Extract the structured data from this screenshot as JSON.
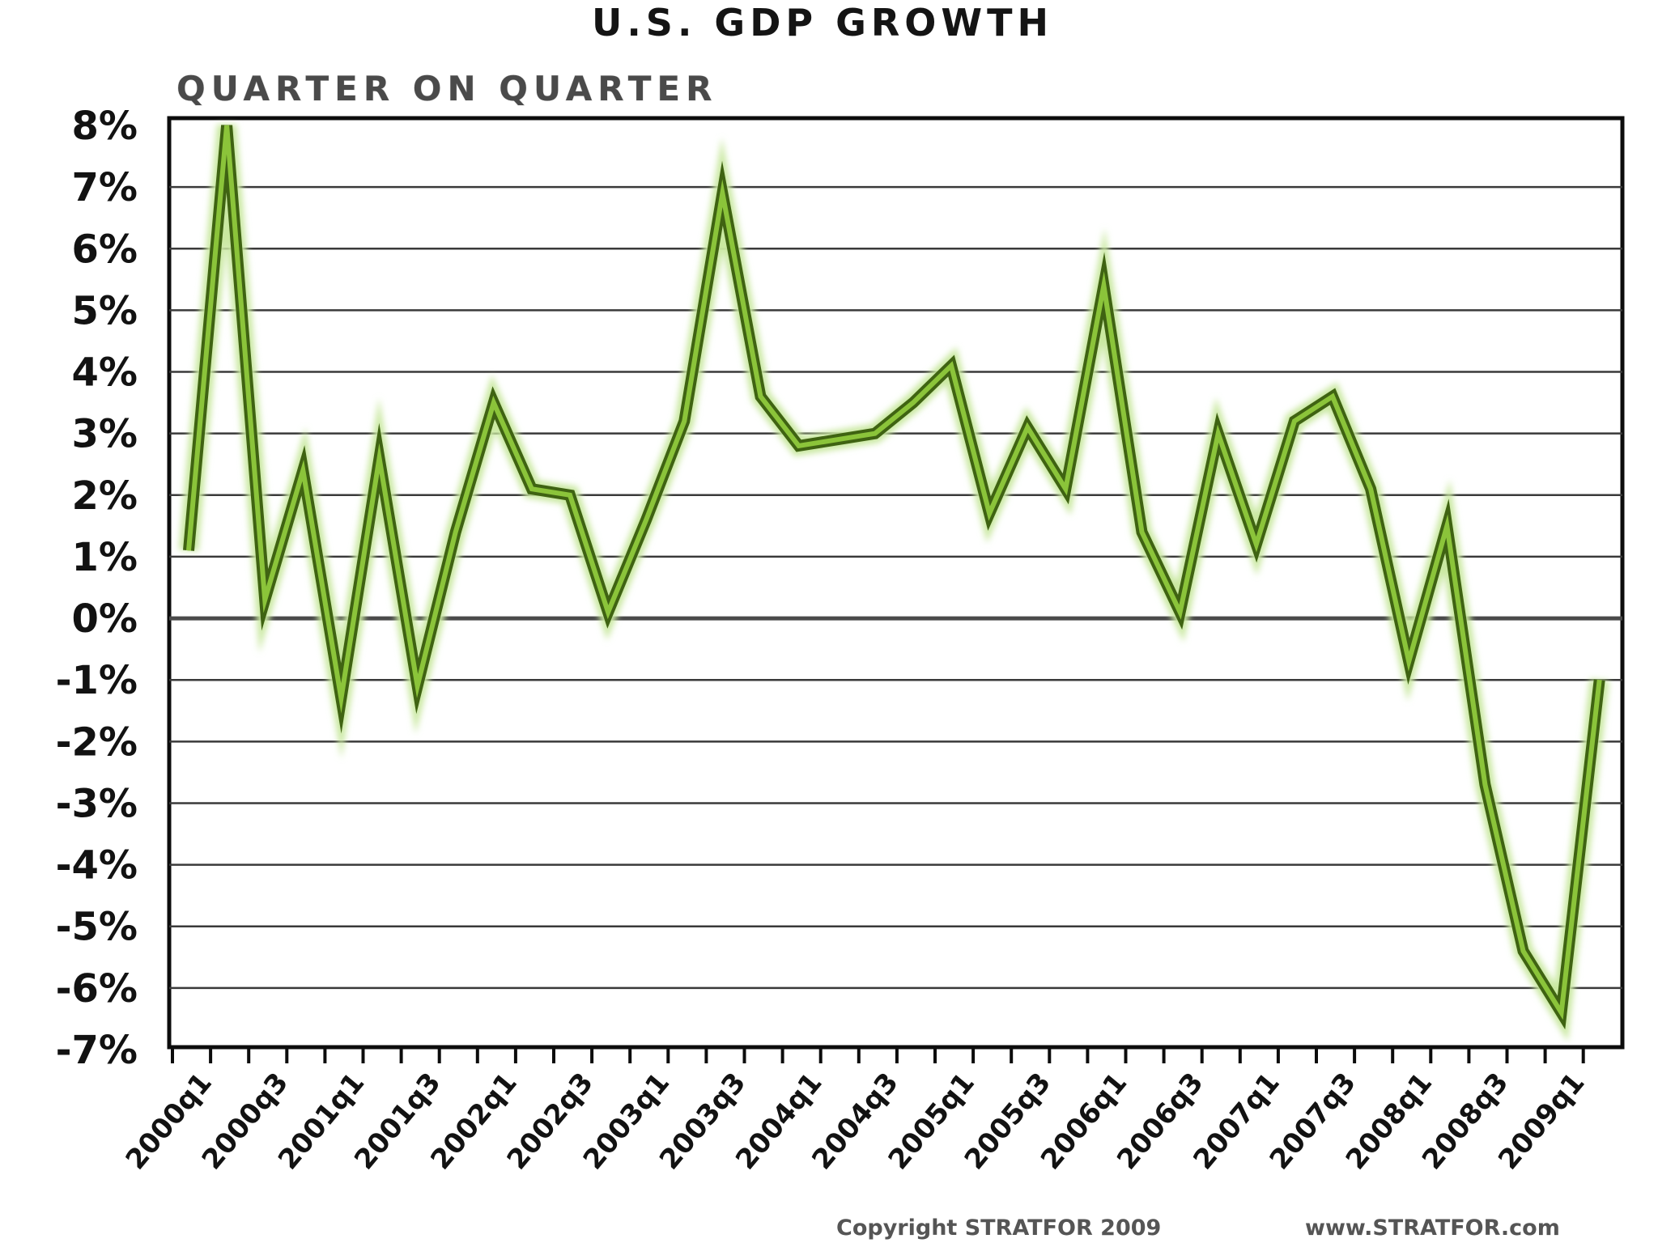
{
  "colors": {
    "series_line": "#8bc43a",
    "series_outline": "#3f6312",
    "series_glow": "#c9e8a0",
    "grid": "#3a3a3a",
    "frame": "#0c0c0c",
    "background": "#ffffff"
  },
  "chart_data": {
    "type": "line",
    "title": "U.S. GDP GROWTH",
    "subtitle": "QUARTER ON QUARTER",
    "xlabel": "",
    "ylabel": "",
    "copyright": "Copyright STRATFOR 2009",
    "website": "www.STRATFOR.com",
    "ylim": [
      -7,
      8
    ],
    "ytick_values": [
      8,
      7,
      6,
      5,
      4,
      3,
      2,
      1,
      0,
      -1,
      -2,
      -3,
      -4,
      -5,
      -6,
      -7
    ],
    "ytick_labels": [
      "8%",
      "7%",
      "6%",
      "5%",
      "4%",
      "3%",
      "2%",
      "1%",
      "0%",
      "-1%",
      "-2%",
      "-3%",
      "-4%",
      "-5%",
      "-6%",
      "-7%"
    ],
    "grid": true,
    "legend": "none",
    "xtick_labels": [
      "2000q1",
      "2000q3",
      "2001q1",
      "2001q3",
      "2002q1",
      "2002q3",
      "2003q1",
      "2003q3",
      "2004q1",
      "2004q3",
      "2005q1",
      "2005q3",
      "2006q1",
      "2006q3",
      "2007q1",
      "2007q3",
      "2008q1",
      "2008q3",
      "2009q1"
    ],
    "categories": [
      "2000q1",
      "2000q2",
      "2000q3",
      "2000q4",
      "2001q1",
      "2001q2",
      "2001q3",
      "2001q4",
      "2002q1",
      "2002q2",
      "2002q3",
      "2002q4",
      "2003q1",
      "2003q2",
      "2003q3",
      "2003q4",
      "2004q1",
      "2004q2",
      "2004q3",
      "2004q4",
      "2005q1",
      "2005q2",
      "2005q3",
      "2005q4",
      "2006q1",
      "2006q2",
      "2006q3",
      "2006q4",
      "2007q1",
      "2007q2",
      "2007q3",
      "2007q4",
      "2008q1",
      "2008q2",
      "2008q3",
      "2008q4",
      "2009q1",
      "2009q2"
    ],
    "series": [
      {
        "values": [
          1.1,
          8.0,
          0.3,
          2.4,
          -1.3,
          2.6,
          -1.1,
          1.4,
          3.5,
          2.1,
          2.0,
          0.1,
          1.6,
          3.2,
          6.9,
          3.6,
          2.8,
          2.9,
          3.0,
          3.5,
          4.1,
          1.7,
          3.1,
          2.1,
          5.4,
          1.4,
          0.1,
          3.0,
          1.2,
          3.2,
          3.6,
          2.1,
          -0.7,
          1.5,
          -2.7,
          -5.4,
          -6.4,
          -1.0
        ]
      }
    ]
  }
}
